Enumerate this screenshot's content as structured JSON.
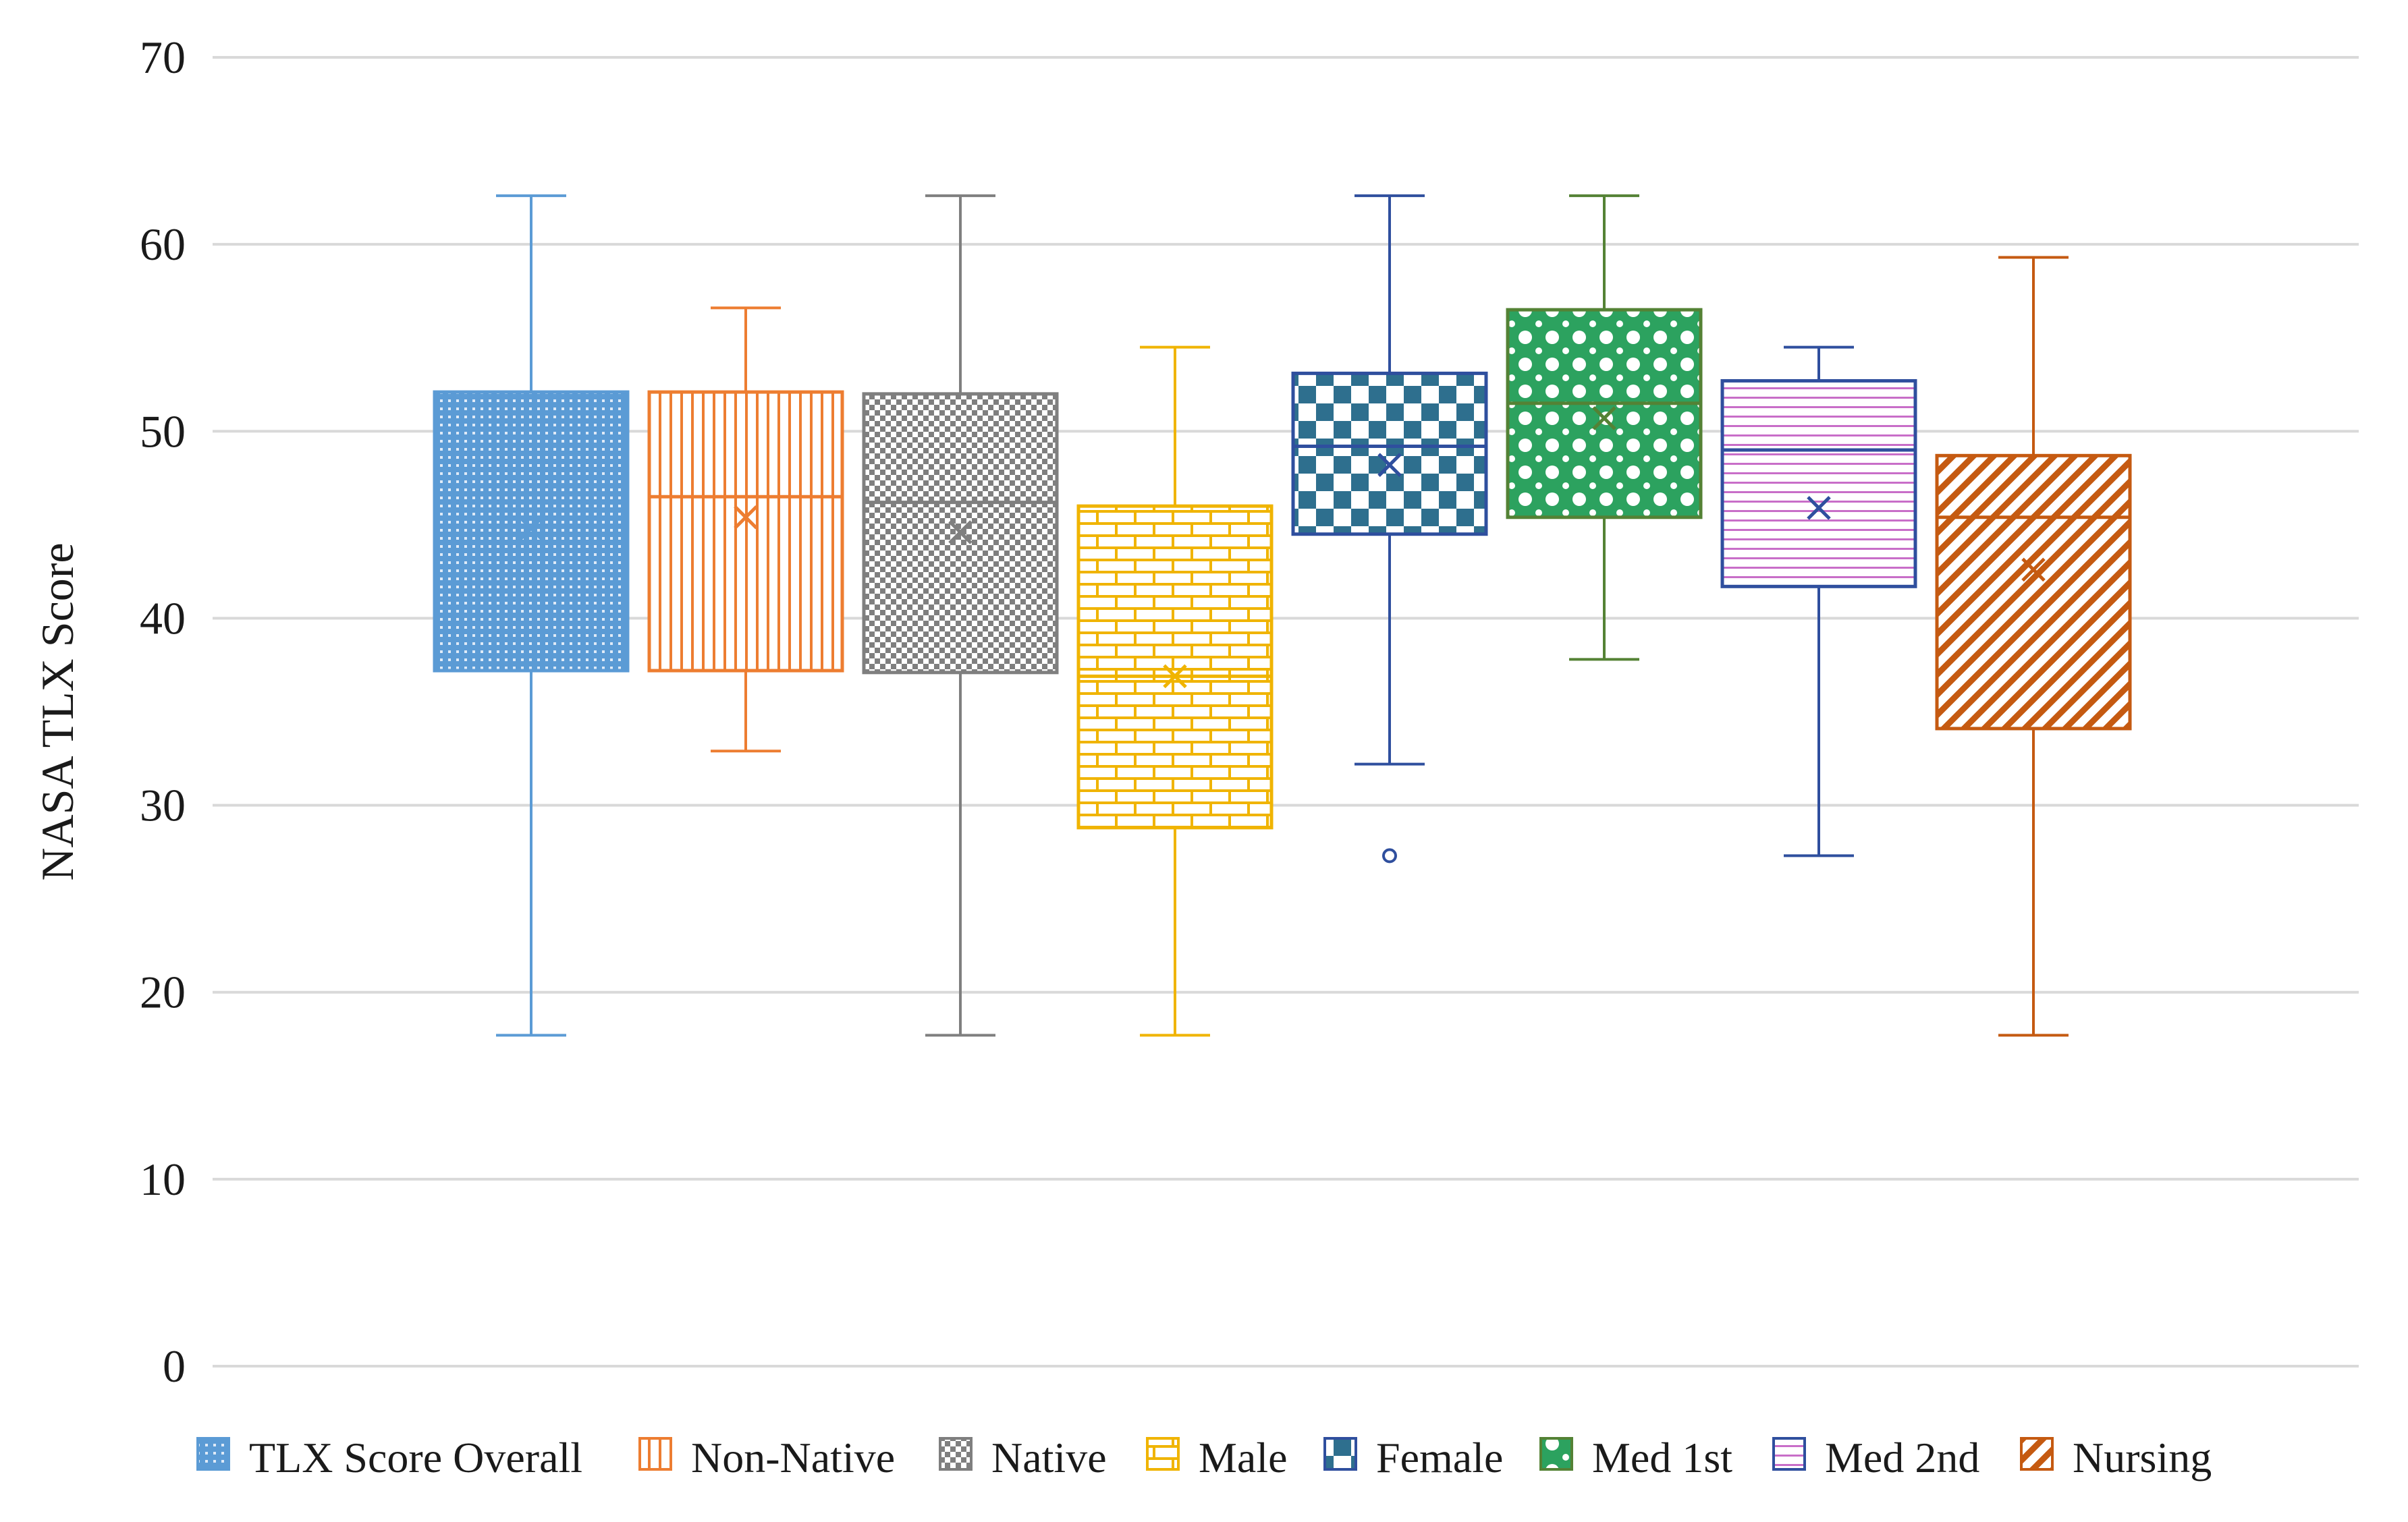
{
  "chart_data": {
    "type": "boxplot",
    "title": "",
    "xlabel": "",
    "ylabel": "NASA TLX Score",
    "ylim": [
      0,
      70
    ],
    "yticks": [
      0,
      10,
      20,
      30,
      40,
      50,
      60,
      70
    ],
    "yticks_text": [
      "0",
      "10",
      "20",
      "30",
      "40",
      "50",
      "60",
      "70"
    ],
    "grid": true,
    "legend_position": "bottom",
    "series": [
      {
        "name": "TLX Score Overall",
        "color": "#5b9bd5",
        "pattern": "dots",
        "whisker_low": 17.7,
        "q1": 37.2,
        "median": 46.2,
        "q3": 52.1,
        "whisker_high": 62.6,
        "mean": 44.8,
        "outliers": []
      },
      {
        "name": "Non-Native",
        "color": "#ed7d31",
        "pattern": "vertical-lines",
        "whisker_low": 32.9,
        "q1": 37.2,
        "median": 46.5,
        "q3": 52.1,
        "whisker_high": 56.6,
        "mean": 45.4,
        "outliers": []
      },
      {
        "name": "Native",
        "color": "#7f7f7f",
        "pattern": "checker",
        "whisker_low": 17.7,
        "q1": 37.1,
        "median": 46.2,
        "q3": 52.0,
        "whisker_high": 62.6,
        "mean": 44.6,
        "outliers": []
      },
      {
        "name": "Male",
        "color": "#f0b400",
        "pattern": "brick",
        "whisker_low": 17.7,
        "q1": 28.8,
        "median": 36.9,
        "q3": 46.0,
        "whisker_high": 54.5,
        "mean": 36.9,
        "outliers": []
      },
      {
        "name": "Female",
        "color": "#2e6f8e",
        "pattern": "large-checker",
        "whisker_low": 32.2,
        "q1": 44.5,
        "median": 49.2,
        "q3": 53.1,
        "whisker_high": 62.6,
        "mean": 48.2,
        "outliers": [
          27.3
        ]
      },
      {
        "name": "Med 1st",
        "color": "#2ca25f",
        "pattern": "circles",
        "whisker_low": 37.8,
        "q1": 45.4,
        "median": 51.5,
        "q3": 56.5,
        "whisker_high": 62.6,
        "mean": 50.7,
        "outliers": []
      },
      {
        "name": "Med 2nd",
        "color": "#c86ec8",
        "pattern": "horizontal-lines",
        "whisker_low": 27.3,
        "q1": 41.7,
        "median": 49.0,
        "q3": 52.7,
        "whisker_high": 54.5,
        "mean": 45.9,
        "outliers": []
      },
      {
        "name": "Nursing",
        "color": "#c55a11",
        "pattern": "diagonal-lines",
        "whisker_low": 17.7,
        "q1": 34.1,
        "median": 45.4,
        "q3": 48.7,
        "whisker_high": 59.3,
        "mean": 42.6,
        "outliers": []
      }
    ]
  },
  "colors": {
    "gridline": "#d9d9d9",
    "female_line": "#2f4f9e",
    "med2nd_line": "#2f4f9e",
    "med1st_line": "#548235"
  }
}
